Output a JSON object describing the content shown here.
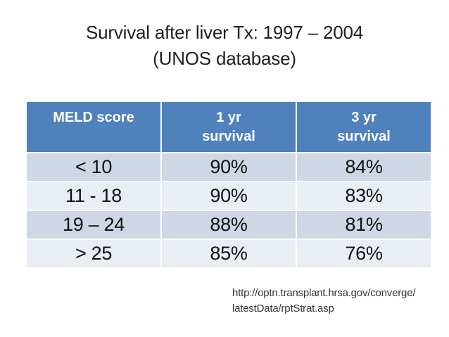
{
  "title": {
    "line1": "Survival after liver Tx: 1997 – 2004",
    "line2": "(UNOS database)"
  },
  "table": {
    "headers": [
      {
        "top": "MELD score",
        "bottom": ""
      },
      {
        "top": "1 yr",
        "bottom": "survival"
      },
      {
        "top": "3 yr",
        "bottom": "survival"
      }
    ],
    "rows": [
      {
        "meld": "< 10",
        "yr1": "90%",
        "yr3": "84%"
      },
      {
        "meld": "11 - 18",
        "yr1": "90%",
        "yr3": "83%"
      },
      {
        "meld": "19 – 24",
        "yr1": "88%",
        "yr3": "81%"
      },
      {
        "meld": "> 25",
        "yr1": "85%",
        "yr3": "76%"
      }
    ]
  },
  "source": {
    "line1": "http://optn.transplant.hrsa.gov/converge/",
    "line2": "latestData/rptStrat.asp"
  },
  "chart_data": {
    "type": "table",
    "title": "Survival after liver Tx: 1997 – 2004 (UNOS database)",
    "columns": [
      "MELD score",
      "1 yr survival",
      "3 yr survival"
    ],
    "rows": [
      [
        "< 10",
        "90%",
        "84%"
      ],
      [
        "11 - 18",
        "90%",
        "83%"
      ],
      [
        "19 – 24",
        "88%",
        "81%"
      ],
      [
        "> 25",
        "85%",
        "76%"
      ]
    ]
  },
  "colors": {
    "header_bg": "#4F81BD",
    "band_dark": "#CFD6E6",
    "band_light": "#E9EDF4",
    "header_text": "#FFFFFF",
    "body_text": "#111111",
    "title_text": "#1F1F1F",
    "source_text": "#333333"
  }
}
